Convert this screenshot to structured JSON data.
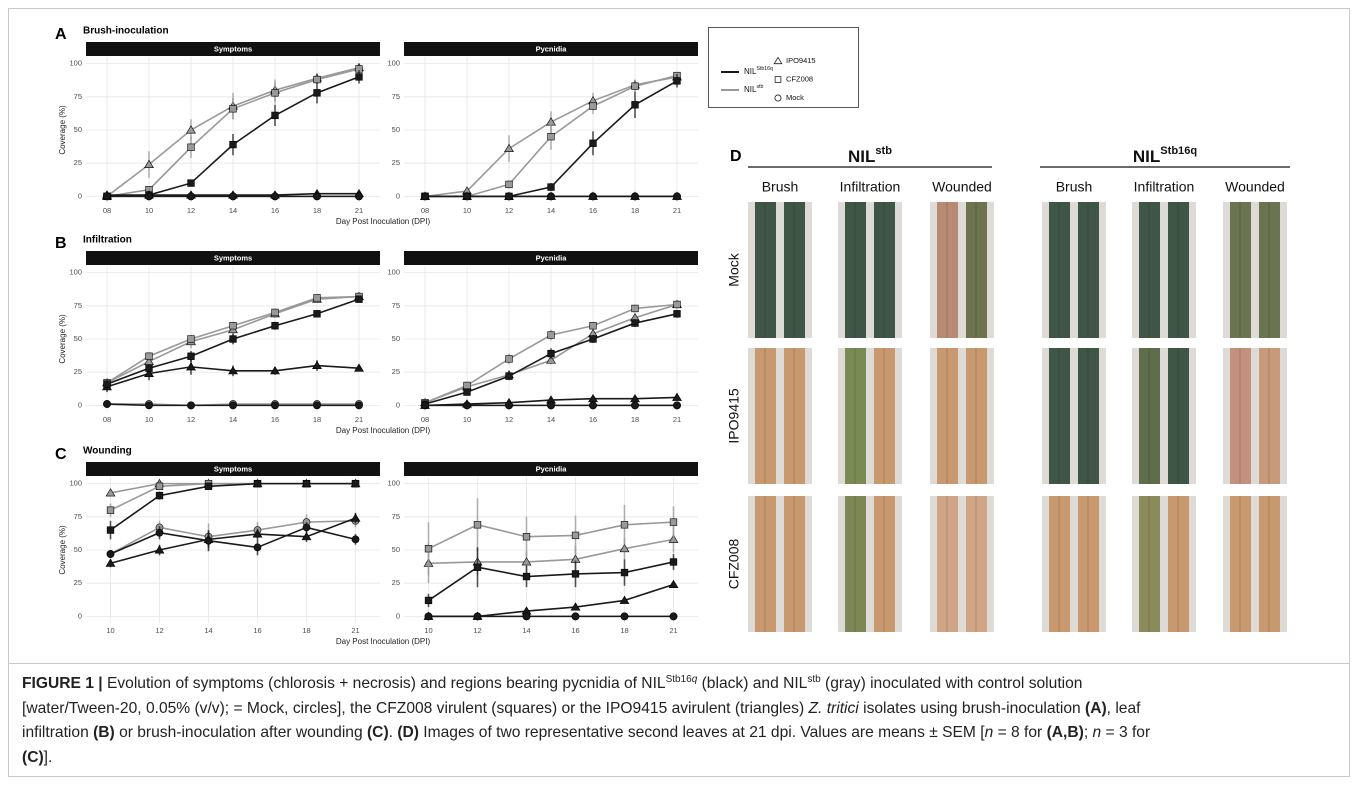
{
  "panels": [
    {
      "label": "A",
      "title": "Brush-inoculation"
    },
    {
      "label": "B",
      "title": "Infiltration"
    },
    {
      "label": "C",
      "title": "Wounding"
    }
  ],
  "chart_data": [
    {
      "type": "line",
      "facet": "Symptoms",
      "y_label": "Coverage (%)",
      "x_label": "Day Post Inoculation (DPI)",
      "categories": [
        "08",
        "10",
        "12",
        "14",
        "16",
        "18",
        "21"
      ],
      "ylim": [
        -5,
        105
      ],
      "yticks": [
        0,
        25,
        50,
        75,
        100
      ],
      "grid": true,
      "series": [
        {
          "color": "#999999",
          "marker": "triangle",
          "values": [
            0,
            24,
            50,
            68,
            80,
            89,
            97
          ],
          "errors": [
            0,
            10,
            8,
            10,
            8,
            4,
            2
          ]
        },
        {
          "color": "#999999",
          "marker": "square",
          "values": [
            0,
            5,
            37,
            66,
            78,
            88,
            96
          ],
          "errors": [
            0,
            2,
            8,
            8,
            8,
            3,
            2
          ]
        },
        {
          "color": "#999999",
          "marker": "circle",
          "values": [
            0,
            0,
            0,
            0,
            0,
            0,
            0
          ],
          "errors": [
            0,
            0,
            0,
            0,
            0,
            0,
            0
          ]
        },
        {
          "color": "#1a1a1a",
          "marker": "triangle",
          "values": [
            1,
            1,
            1,
            1,
            1,
            2,
            2
          ],
          "errors": [
            0,
            0,
            0,
            0,
            0,
            0,
            0
          ]
        },
        {
          "color": "#1a1a1a",
          "marker": "square",
          "values": [
            0,
            1,
            10,
            39,
            61,
            78,
            90
          ],
          "errors": [
            0,
            1,
            2,
            8,
            8,
            8,
            5
          ]
        },
        {
          "color": "#1a1a1a",
          "marker": "circle",
          "values": [
            0,
            0,
            0,
            0,
            0,
            0,
            0
          ],
          "errors": [
            0,
            0,
            0,
            0,
            0,
            0,
            0
          ]
        }
      ]
    },
    {
      "type": "line",
      "facet": "Pycnidia",
      "categories": [
        "08",
        "10",
        "12",
        "14",
        "16",
        "18",
        "21"
      ],
      "ylim": [
        -5,
        105
      ],
      "yticks": [
        0,
        25,
        50,
        75,
        100
      ],
      "grid": true,
      "series": [
        {
          "color": "#999999",
          "marker": "triangle",
          "values": [
            0,
            4,
            36,
            56,
            72,
            84,
            90
          ],
          "errors": [
            0,
            2,
            10,
            8,
            6,
            4,
            2
          ]
        },
        {
          "color": "#999999",
          "marker": "square",
          "values": [
            0,
            0,
            9,
            45,
            68,
            83,
            91
          ],
          "errors": [
            0,
            0,
            3,
            10,
            6,
            4,
            2
          ]
        },
        {
          "color": "#999999",
          "marker": "circle",
          "values": [
            0,
            0,
            0,
            0,
            0,
            0,
            0
          ],
          "errors": [
            0,
            0,
            0,
            0,
            0,
            0,
            0
          ]
        },
        {
          "color": "#1a1a1a",
          "marker": "triangle",
          "values": [
            0,
            0,
            0,
            0,
            0,
            0,
            0
          ],
          "errors": [
            0,
            0,
            0,
            0,
            0,
            0,
            0
          ]
        },
        {
          "color": "#1a1a1a",
          "marker": "square",
          "values": [
            0,
            0,
            0,
            7,
            40,
            69,
            87
          ],
          "errors": [
            0,
            0,
            1,
            3,
            9,
            10,
            5
          ]
        },
        {
          "color": "#1a1a1a",
          "marker": "circle",
          "values": [
            0,
            0,
            0,
            0,
            0,
            0,
            0
          ],
          "errors": [
            0,
            0,
            0,
            0,
            0,
            0,
            0
          ]
        }
      ]
    },
    {
      "type": "line",
      "facet": "Symptoms",
      "y_label": "Coverage (%)",
      "x_label": "Day Post Inoculation (DPI)",
      "categories": [
        "08",
        "10",
        "12",
        "14",
        "16",
        "18",
        "21"
      ],
      "ylim": [
        -5,
        105
      ],
      "yticks": [
        0,
        25,
        50,
        75,
        100
      ],
      "grid": true,
      "series": [
        {
          "color": "#999999",
          "marker": "triangle",
          "values": [
            17,
            33,
            48,
            57,
            69,
            80,
            82
          ],
          "errors": [
            3,
            4,
            5,
            4,
            3,
            2,
            2
          ]
        },
        {
          "color": "#999999",
          "marker": "square",
          "values": [
            17,
            37,
            50,
            60,
            70,
            81,
            82
          ],
          "errors": [
            3,
            3,
            3,
            3,
            3,
            3,
            2
          ]
        },
        {
          "color": "#999999",
          "marker": "circle",
          "values": [
            1,
            1,
            0,
            1,
            1,
            1,
            1
          ],
          "errors": [
            0,
            0,
            0,
            0,
            0,
            0,
            0
          ]
        },
        {
          "color": "#1a1a1a",
          "marker": "triangle",
          "values": [
            14,
            24,
            29,
            26,
            26,
            30,
            28
          ],
          "errors": [
            4,
            5,
            6,
            4,
            3,
            4,
            2
          ]
        },
        {
          "color": "#1a1a1a",
          "marker": "square",
          "values": [
            16,
            28,
            37,
            50,
            60,
            69,
            80
          ],
          "errors": [
            3,
            3,
            4,
            4,
            3,
            2,
            2
          ]
        },
        {
          "color": "#1a1a1a",
          "marker": "circle",
          "values": [
            1,
            0,
            0,
            0,
            0,
            0,
            0
          ],
          "errors": [
            0,
            0,
            0,
            0,
            0,
            0,
            0
          ]
        }
      ]
    },
    {
      "type": "line",
      "facet": "Pycnidia",
      "categories": [
        "08",
        "10",
        "12",
        "14",
        "16",
        "18",
        "21"
      ],
      "ylim": [
        -5,
        105
      ],
      "yticks": [
        0,
        25,
        50,
        75,
        100
      ],
      "grid": true,
      "series": [
        {
          "color": "#999999",
          "marker": "triangle",
          "values": [
            2,
            14,
            23,
            34,
            54,
            66,
            76
          ],
          "errors": [
            1,
            2,
            3,
            3,
            3,
            3,
            3
          ]
        },
        {
          "color": "#999999",
          "marker": "square",
          "values": [
            2,
            15,
            35,
            53,
            60,
            73,
            76
          ],
          "errors": [
            1,
            2,
            4,
            4,
            3,
            3,
            3
          ]
        },
        {
          "color": "#999999",
          "marker": "circle",
          "values": [
            0,
            0,
            0,
            0,
            0,
            0,
            0
          ],
          "errors": [
            0,
            0,
            0,
            0,
            0,
            0,
            0
          ]
        },
        {
          "color": "#1a1a1a",
          "marker": "triangle",
          "values": [
            0,
            1,
            2,
            4,
            5,
            5,
            6
          ],
          "errors": [
            0,
            0,
            1,
            1,
            1,
            1,
            1
          ]
        },
        {
          "color": "#1a1a1a",
          "marker": "square",
          "values": [
            1,
            10,
            22,
            39,
            50,
            62,
            69
          ],
          "errors": [
            1,
            2,
            3,
            4,
            3,
            3,
            3
          ]
        },
        {
          "color": "#1a1a1a",
          "marker": "circle",
          "values": [
            0,
            0,
            0,
            0,
            0,
            0,
            0
          ],
          "errors": [
            0,
            0,
            0,
            0,
            0,
            0,
            0
          ]
        }
      ]
    },
    {
      "type": "line",
      "facet": "Symptoms",
      "y_label": "Coverage (%)",
      "x_label": "Day Post Inoculation (DPI)",
      "categories": [
        "10",
        "12",
        "14",
        "16",
        "18",
        "21"
      ],
      "ylim": [
        -5,
        105
      ],
      "yticks": [
        0,
        25,
        50,
        75,
        100
      ],
      "grid": true,
      "series": [
        {
          "color": "#999999",
          "marker": "triangle",
          "values": [
            93,
            100,
            100,
            100,
            100,
            100
          ],
          "errors": [
            2,
            0,
            0,
            0,
            0,
            0
          ]
        },
        {
          "color": "#999999",
          "marker": "square",
          "values": [
            80,
            98,
            100,
            100,
            100,
            100
          ],
          "errors": [
            5,
            2,
            0,
            0,
            0,
            0
          ]
        },
        {
          "color": "#999999",
          "marker": "circle",
          "values": [
            47,
            67,
            60,
            65,
            71,
            72
          ],
          "errors": [
            3,
            5,
            10,
            6,
            6,
            5
          ]
        },
        {
          "color": "#1a1a1a",
          "marker": "triangle",
          "values": [
            40,
            50,
            58,
            62,
            60,
            74
          ],
          "errors": [
            3,
            4,
            6,
            4,
            4,
            4
          ]
        },
        {
          "color": "#1a1a1a",
          "marker": "square",
          "values": [
            65,
            91,
            98,
            100,
            100,
            100
          ],
          "errors": [
            7,
            3,
            2,
            0,
            0,
            0
          ]
        },
        {
          "color": "#1a1a1a",
          "marker": "circle",
          "values": [
            47,
            63,
            57,
            52,
            67,
            58
          ],
          "errors": [
            3,
            5,
            8,
            6,
            4,
            4
          ]
        }
      ]
    },
    {
      "type": "line",
      "facet": "Pycnidia",
      "categories": [
        "10",
        "12",
        "14",
        "16",
        "18",
        "21"
      ],
      "ylim": [
        -5,
        105
      ],
      "yticks": [
        0,
        25,
        50,
        75,
        100
      ],
      "grid": true,
      "series": [
        {
          "color": "#999999",
          "marker": "triangle",
          "values": [
            40,
            41,
            41,
            43,
            51,
            58
          ],
          "errors": [
            15,
            10,
            8,
            10,
            8,
            10
          ]
        },
        {
          "color": "#999999",
          "marker": "square",
          "values": [
            51,
            69,
            60,
            61,
            69,
            71
          ],
          "errors": [
            20,
            20,
            15,
            15,
            15,
            12
          ]
        },
        {
          "color": "#999999",
          "marker": "circle",
          "values": [
            0,
            0,
            0,
            0,
            0,
            0
          ],
          "errors": [
            0,
            0,
            0,
            0,
            0,
            0
          ]
        },
        {
          "color": "#1a1a1a",
          "marker": "triangle",
          "values": [
            0,
            0,
            4,
            7,
            12,
            24
          ],
          "errors": [
            0,
            0,
            1,
            1,
            1,
            2
          ]
        },
        {
          "color": "#1a1a1a",
          "marker": "square",
          "values": [
            12,
            37,
            30,
            32,
            33,
            41
          ],
          "errors": [
            5,
            15,
            8,
            10,
            10,
            6
          ]
        },
        {
          "color": "#1a1a1a",
          "marker": "circle",
          "values": [
            0,
            0,
            0,
            0,
            0,
            0
          ],
          "errors": [
            0,
            0,
            0,
            0,
            0,
            0
          ]
        }
      ]
    }
  ],
  "legend": {
    "lines": [
      {
        "text": "NIL",
        "sup": "Stb16q",
        "color": "#1a1a1a"
      },
      {
        "text": "NIL",
        "sup": "stb",
        "color": "#999999"
      }
    ],
    "shapes": [
      {
        "text": "IPO9415",
        "marker": "triangle"
      },
      {
        "text": "CFZ008",
        "marker": "square"
      },
      {
        "text": "Mock",
        "marker": "circle"
      }
    ]
  },
  "photo_panel": {
    "label": "D",
    "groups": [
      {
        "text": "NIL",
        "sup": "stb"
      },
      {
        "text": "NIL",
        "sup": "Stb16q"
      }
    ],
    "columns": [
      "Brush",
      "Infiltration",
      "Wounded"
    ],
    "rows": [
      "Mock",
      "IPO9415",
      "CFZ008"
    ]
  },
  "caption": {
    "lines": [
      [
        {
          "text": "FIGURE 1 |",
          "style": "bold"
        },
        " Evolution of symptoms (chlorosis + necrosis) and regions bearing pycnidia of NIL",
        {
          "text": "Stb16",
          "style": "sup"
        },
        {
          "text": "q",
          "style": "sup-italic"
        },
        " (black) and NIL",
        {
          "text": "stb",
          "style": "sup"
        },
        " (gray) inoculated with control solution"
      ],
      [
        "[water/Tween-20, 0.05% (v/v); = Mock, circles], the CFZ008 virulent (squares) or the IPO9415 avirulent (triangles) ",
        {
          "text": "Z. tritici",
          "style": "italic"
        },
        " isolates using brush-inoculation ",
        {
          "text": "(A)",
          "style": "bold"
        },
        ", leaf"
      ],
      [
        "infiltration ",
        {
          "text": "(B)",
          "style": "bold"
        },
        " or brush-inoculation after wounding ",
        {
          "text": "(C)",
          "style": "bold"
        },
        ". ",
        {
          "text": "(D)",
          "style": "bold"
        },
        " Images of two representative second leaves at 21 dpi. Values are means ± SEM [",
        {
          "text": "n",
          "style": "italic"
        },
        " = 8 for ",
        {
          "text": "(A,B)",
          "style": "bold"
        },
        "; ",
        {
          "text": "n",
          "style": "italic"
        },
        " = 3 for"
      ],
      [
        {
          "text": "(C)",
          "style": "bold"
        },
        "]."
      ]
    ]
  }
}
